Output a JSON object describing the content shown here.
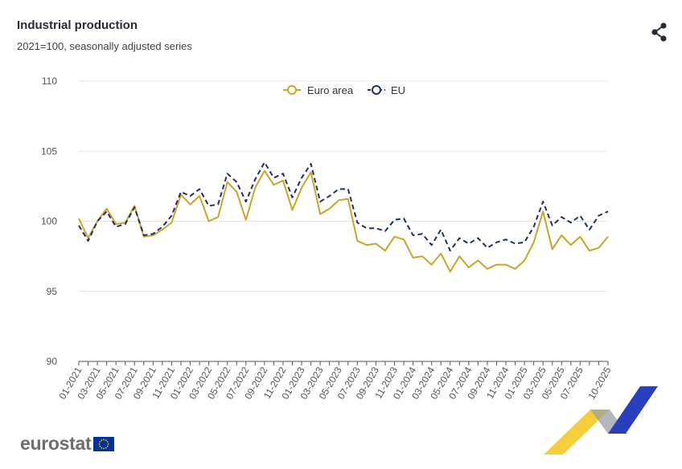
{
  "header": {
    "title": "Industrial production",
    "subtitle": "2021=100, seasonally adjusted series",
    "share_icon": "share-icon"
  },
  "brand": {
    "name": "eurostat",
    "flag_icon": "eu-flag-icon",
    "flag_color": "#003399",
    "star_color": "#ffcc00",
    "ribbon_colors": [
      "#f5c518",
      "#2a3fbd",
      "#9aa0a6"
    ]
  },
  "colors": {
    "euro_area": "#c9a426",
    "eu": "#1f2d6e",
    "grid": "#e6e6e6",
    "axis": "#555555"
  },
  "chart_data": {
    "type": "line",
    "title": "Industrial production",
    "subtitle": "2021=100, seasonally adjusted series",
    "xlabel": "",
    "ylabel": "",
    "ylim": [
      90,
      110
    ],
    "yticks": [
      90,
      95,
      100,
      105,
      110
    ],
    "grid": true,
    "legend_position": "top-center",
    "x": [
      "01-2021",
      "02-2021",
      "03-2021",
      "04-2021",
      "05-2021",
      "06-2021",
      "07-2021",
      "08-2021",
      "09-2021",
      "10-2021",
      "11-2021",
      "12-2021",
      "01-2022",
      "02-2022",
      "03-2022",
      "04-2022",
      "05-2022",
      "06-2022",
      "07-2022",
      "08-2022",
      "09-2022",
      "10-2022",
      "11-2022",
      "12-2022",
      "01-2023",
      "02-2023",
      "03-2023",
      "04-2023",
      "05-2023",
      "06-2023",
      "07-2023",
      "08-2023",
      "09-2023",
      "10-2023",
      "11-2023",
      "12-2023",
      "01-2024",
      "02-2024",
      "03-2024",
      "04-2024",
      "05-2024",
      "06-2024",
      "07-2024",
      "08-2024",
      "09-2024",
      "10-2024",
      "11-2024",
      "12-2024",
      "01-2025",
      "02-2025",
      "03-2025",
      "04-2025",
      "05-2025",
      "06-2025",
      "07-2025",
      "08-2025",
      "09-2025",
      "10-2025"
    ],
    "x_tick_labels": [
      "01-2021",
      "03-2021",
      "05-2021",
      "07-2021",
      "09-2021",
      "11-2021",
      "01-2022",
      "03-2022",
      "05-2022",
      "07-2022",
      "09-2022",
      "11-2022",
      "01-2023",
      "03-2023",
      "05-2023",
      "07-2023",
      "09-2023",
      "11-2023",
      "01-2024",
      "03-2024",
      "05-2024",
      "07-2024",
      "09-2024",
      "11-2024",
      "01-2025",
      "03-2025",
      "05-2025",
      "07-2025",
      "10-2025"
    ],
    "series": [
      {
        "name": "Euro area",
        "style": "solid",
        "values": [
          100.2,
          98.8,
          100.0,
          100.9,
          99.8,
          99.9,
          101.1,
          98.9,
          99.0,
          99.4,
          99.9,
          101.9,
          101.2,
          101.8,
          100.0,
          100.3,
          102.8,
          102.1,
          100.1,
          102.4,
          103.6,
          102.6,
          102.9,
          100.8,
          102.4,
          103.5,
          100.5,
          100.9,
          101.5,
          101.6,
          98.6,
          98.3,
          98.4,
          97.9,
          98.9,
          98.7,
          97.4,
          97.5,
          96.9,
          97.7,
          96.4,
          97.5,
          96.7,
          97.2,
          96.6,
          96.9,
          96.9,
          96.6,
          97.2,
          98.5,
          100.7,
          98.0,
          99.0,
          98.3,
          98.9,
          97.9,
          98.1,
          98.9
        ]
      },
      {
        "name": "EU",
        "style": "dashed",
        "values": [
          99.7,
          98.6,
          100.0,
          100.7,
          99.6,
          99.8,
          101.0,
          99.0,
          99.1,
          99.6,
          100.4,
          102.1,
          101.8,
          102.3,
          101.1,
          101.2,
          103.4,
          102.8,
          101.4,
          103.0,
          104.2,
          103.1,
          103.4,
          101.7,
          103.1,
          104.1,
          101.4,
          101.8,
          102.3,
          102.3,
          99.9,
          99.5,
          99.5,
          99.3,
          100.1,
          100.2,
          99.0,
          99.1,
          98.3,
          99.4,
          97.9,
          98.8,
          98.4,
          98.8,
          98.1,
          98.5,
          98.7,
          98.4,
          98.5,
          99.6,
          101.4,
          99.7,
          100.3,
          99.9,
          100.4,
          99.4,
          100.4,
          100.7
        ]
      }
    ]
  }
}
